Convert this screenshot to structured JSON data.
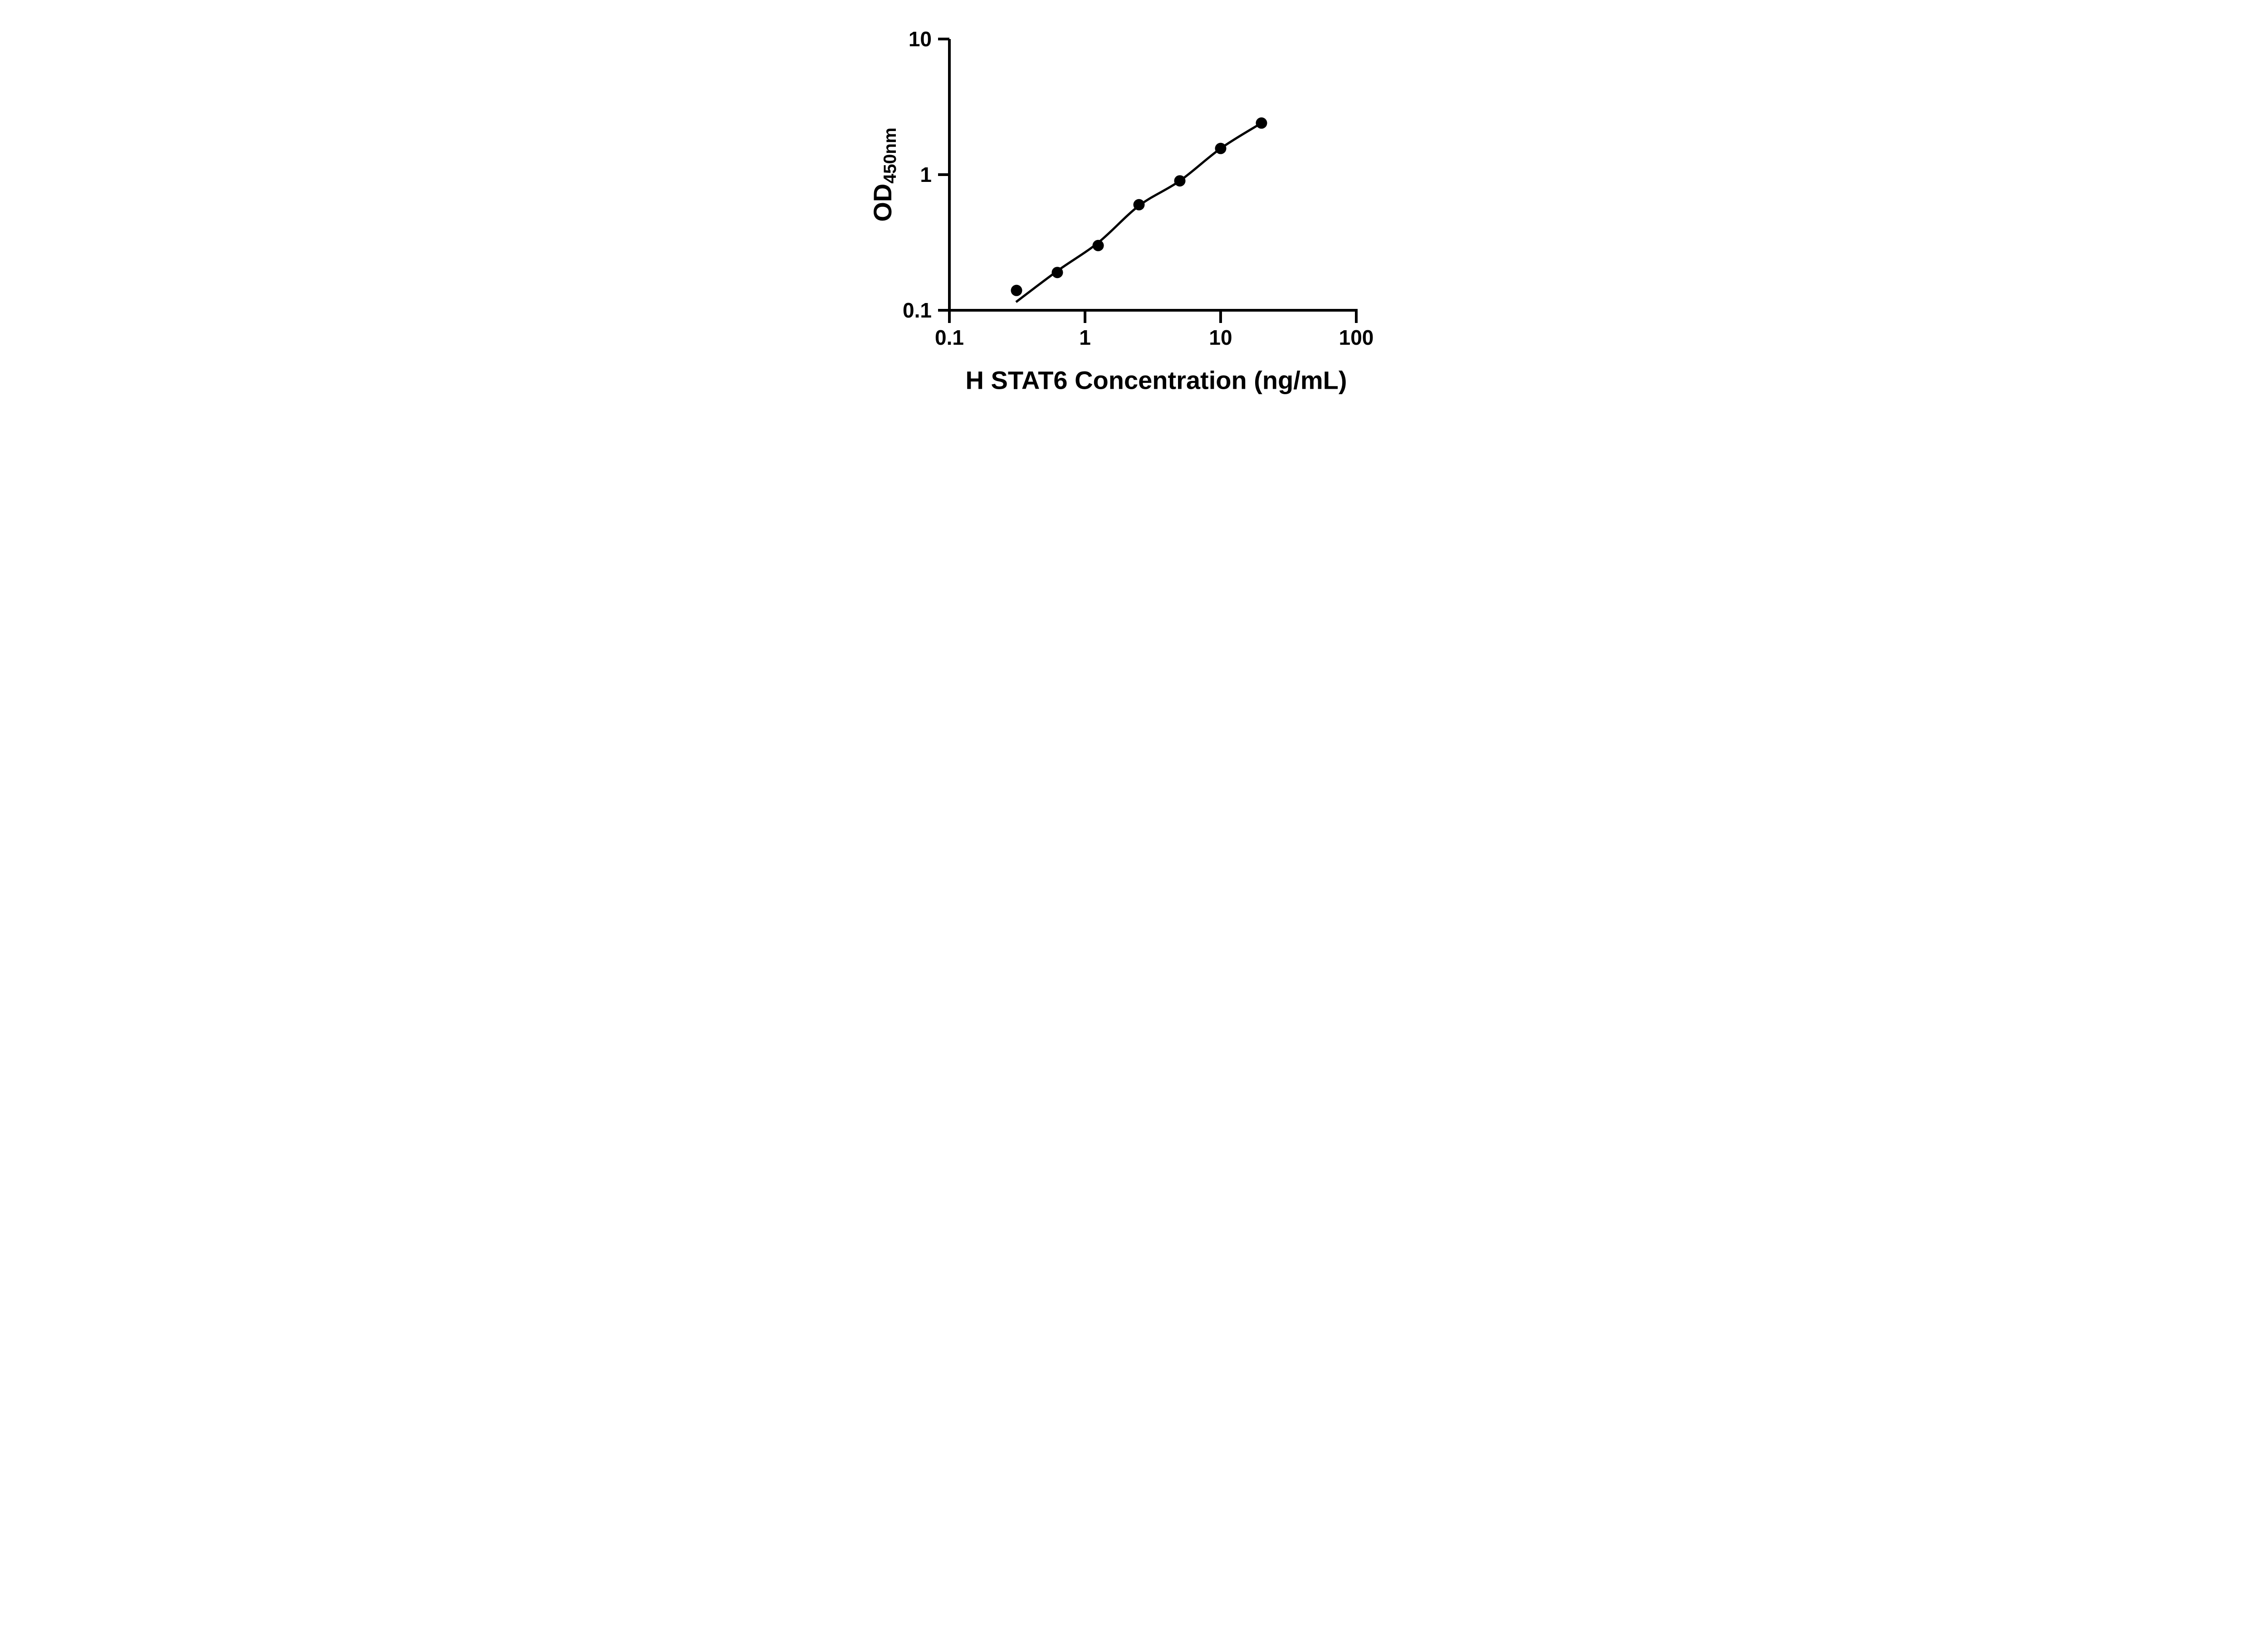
{
  "figure": {
    "background_color": "#ffffff",
    "ink_color": "#000000"
  },
  "chart_data": {
    "type": "scatter",
    "title": "",
    "legend": "none",
    "grid": false,
    "x_axis": {
      "label": "H STAT6 Concentration (ng/mL)",
      "scale": "log10",
      "min": 0.1,
      "max": 100,
      "ticks": [
        0.1,
        1,
        10,
        100
      ],
      "tick_labels": [
        "0.1",
        "1",
        "10",
        "100"
      ],
      "tick_direction": "out"
    },
    "y_axis": {
      "label": "OD450nm",
      "label_main": "OD",
      "label_sub": "450nm",
      "scale": "log10",
      "min": 0.1,
      "max": 10,
      "ticks": [
        10,
        1,
        0.1
      ],
      "tick_labels": [
        "10",
        "1",
        "0.1"
      ],
      "tick_direction": "out"
    },
    "series": [
      {
        "name": "standard curve points",
        "marker": "filled-circle",
        "color": "#000000",
        "points": [
          {
            "x": 0.3125,
            "y": 0.14
          },
          {
            "x": 0.625,
            "y": 0.19
          },
          {
            "x": 1.25,
            "y": 0.3
          },
          {
            "x": 2.5,
            "y": 0.6
          },
          {
            "x": 5,
            "y": 0.9
          },
          {
            "x": 10,
            "y": 1.56
          },
          {
            "x": 20,
            "y": 2.4
          }
        ]
      }
    ],
    "fit_curve": {
      "name": "fitted standard curve",
      "color": "#000000",
      "points": [
        {
          "x": 0.31,
          "y": 0.115
        },
        {
          "x": 0.625,
          "y": 0.195
        },
        {
          "x": 1.25,
          "y": 0.315
        },
        {
          "x": 2.5,
          "y": 0.59
        },
        {
          "x": 5,
          "y": 0.9
        },
        {
          "x": 10,
          "y": 1.56
        },
        {
          "x": 20,
          "y": 2.4
        }
      ]
    }
  }
}
